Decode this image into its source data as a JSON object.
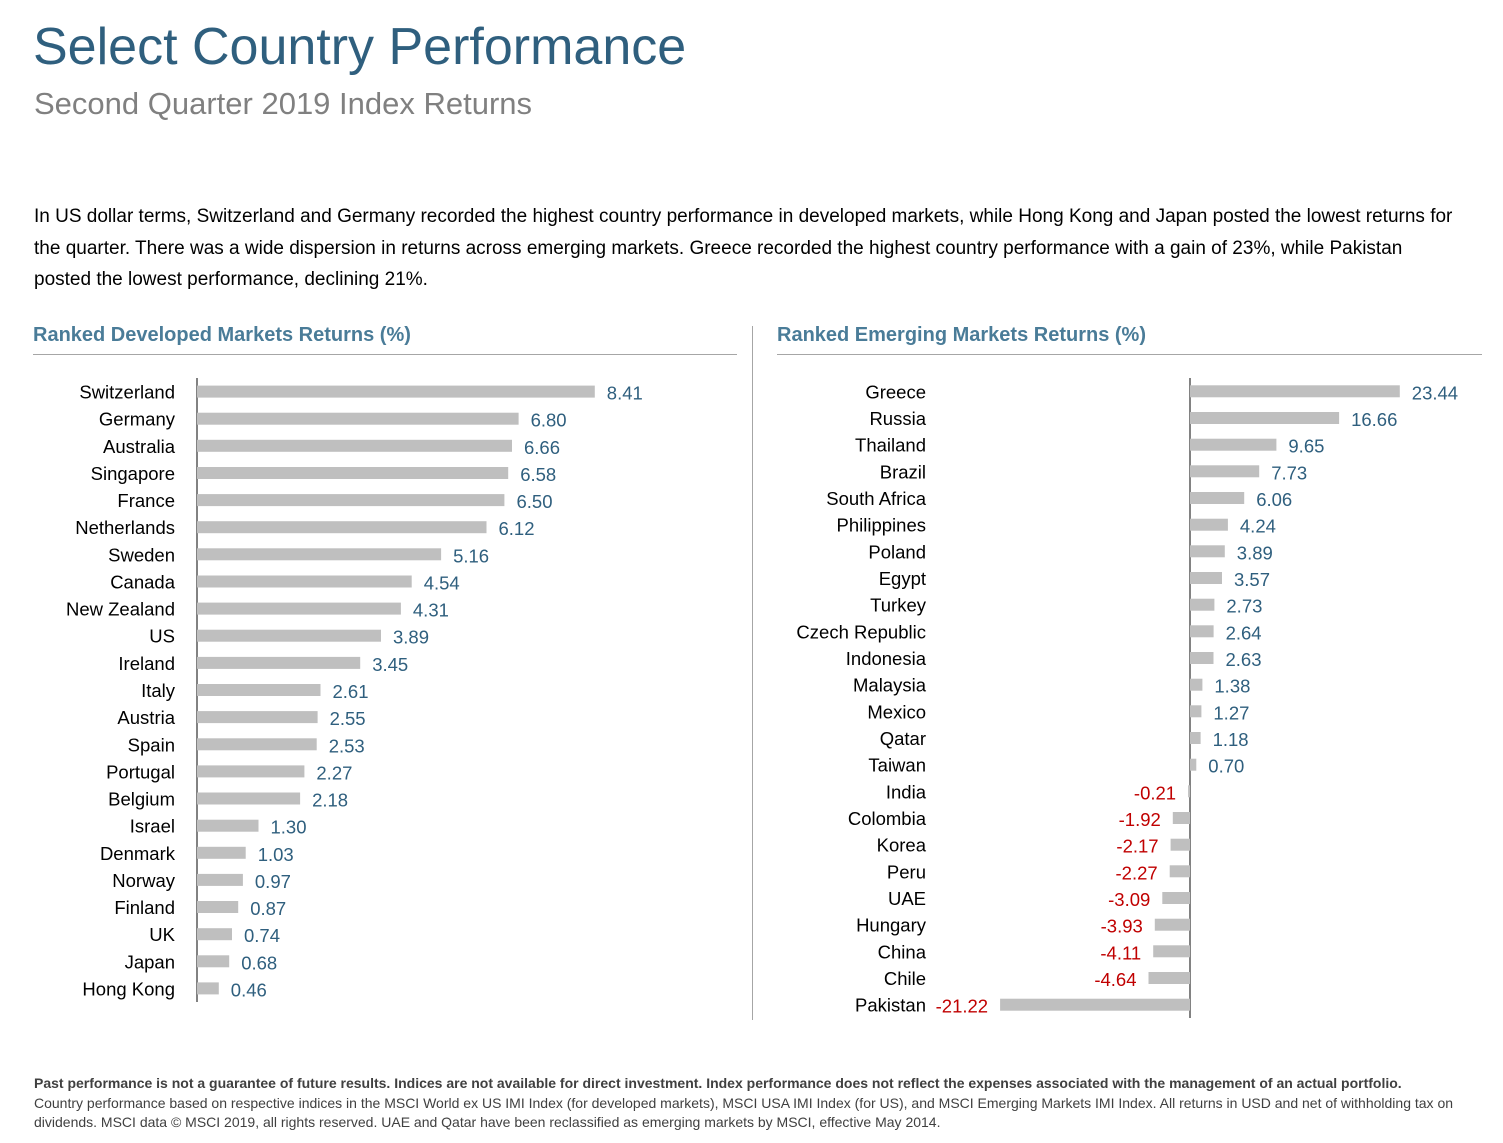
{
  "header": {
    "title": "Select Country Performance",
    "subtitle": "Second Quarter 2019 Index Returns"
  },
  "intro_text": "In US dollar terms, Switzerland and Germany recorded the highest country performance in developed markets, while Hong Kong and Japan posted the lowest returns for the quarter. There was a wide dispersion in returns across emerging markets. Greece recorded the highest country performance with a gain of 23%, while Pakistan posted the lowest performance, declining 21%.",
  "colors": {
    "bar": "#bfbfbf",
    "positive_label": "#2f5f7e",
    "negative_label": "#c00000",
    "axis": "#595959",
    "heading": "#4a7c98"
  },
  "chart_data": [
    {
      "type": "bar",
      "orientation": "horizontal",
      "title": "Ranked Developed Markets Returns (%)",
      "categories": [
        "Switzerland",
        "Germany",
        "Australia",
        "Singapore",
        "France",
        "Netherlands",
        "Sweden",
        "Canada",
        "New Zealand",
        "US",
        "Ireland",
        "Italy",
        "Austria",
        "Spain",
        "Portugal",
        "Belgium",
        "Israel",
        "Denmark",
        "Norway",
        "Finland",
        "UK",
        "Japan",
        "Hong Kong"
      ],
      "values": [
        8.41,
        6.8,
        6.66,
        6.58,
        6.5,
        6.12,
        5.16,
        4.54,
        4.31,
        3.89,
        3.45,
        2.61,
        2.55,
        2.53,
        2.27,
        2.18,
        1.3,
        1.03,
        0.97,
        0.87,
        0.74,
        0.68,
        0.46
      ],
      "value_labels": [
        "8.41",
        "6.80",
        "6.66",
        "6.58",
        "6.50",
        "6.12",
        "5.16",
        "4.54",
        "4.31",
        "3.89",
        "3.45",
        "2.61",
        "2.55",
        "2.53",
        "2.27",
        "2.18",
        "1.30",
        "1.03",
        "0.97",
        "0.87",
        "0.74",
        "0.68",
        "0.46"
      ],
      "xlim": [
        0,
        10
      ],
      "grid": false
    },
    {
      "type": "bar",
      "orientation": "horizontal",
      "title": "Ranked Emerging Markets Returns (%)",
      "categories": [
        "Greece",
        "Russia",
        "Thailand",
        "Brazil",
        "South Africa",
        "Philippines",
        "Poland",
        "Egypt",
        "Turkey",
        "Czech Republic",
        "Indonesia",
        "Malaysia",
        "Mexico",
        "Qatar",
        "Taiwan",
        "India",
        "Colombia",
        "Korea",
        "Peru",
        "UAE",
        "Hungary",
        "China",
        "Chile",
        "Pakistan"
      ],
      "values": [
        23.44,
        16.66,
        9.65,
        7.73,
        6.06,
        4.24,
        3.89,
        3.57,
        2.73,
        2.64,
        2.63,
        1.38,
        1.27,
        1.18,
        0.7,
        -0.21,
        -1.92,
        -2.17,
        -2.27,
        -3.09,
        -3.93,
        -4.11,
        -4.64,
        -21.22
      ],
      "value_labels": [
        "23.44",
        "16.66",
        "9.65",
        "7.73",
        "6.06",
        "4.24",
        "3.89",
        "3.57",
        "2.73",
        "2.64",
        "2.63",
        "1.38",
        "1.27",
        "1.18",
        "0.70",
        "-0.21",
        "-1.92",
        "-2.17",
        "-2.27",
        "-3.09",
        "-3.93",
        "-4.11",
        "-4.64",
        "-21.22"
      ],
      "xlim": [
        -24,
        31
      ],
      "grid": false
    }
  ],
  "footnote": {
    "bold": "Past performance is not a guarantee of future results. Indices are not available for direct investment. Index performance does not reflect the expenses associated with the management of an actual portfolio.",
    "normal": "Country performance based on respective indices in the MSCI World ex US IMI Index (for developed markets), MSCI USA IMI Index (for US), and MSCI Emerging Markets IMI Index. All returns in USD and net of withholding tax on dividends. MSCI data © MSCI 2019, all rights reserved. UAE and Qatar have been reclassified as emerging markets by MSCI, effective May 2014."
  }
}
